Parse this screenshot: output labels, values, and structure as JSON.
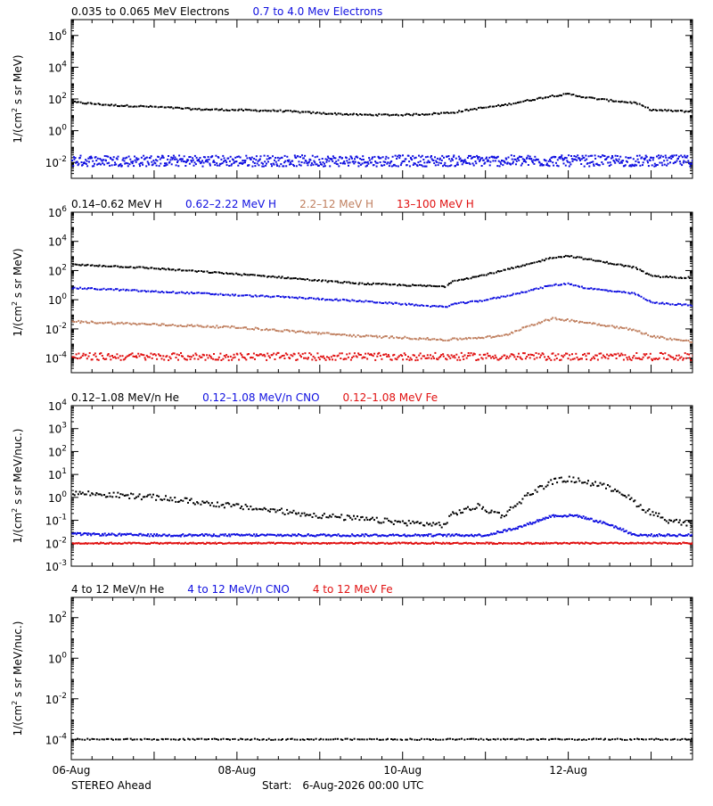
{
  "colors": {
    "black": "#000000",
    "blue": "#1010e0",
    "tan": "#c08060",
    "red": "#e01010"
  },
  "footer": {
    "spacecraft": "STEREO Ahead",
    "start_label": "Start:",
    "start_value": "6-Aug-2026 00:00 UTC"
  },
  "chart_data": [
    {
      "id": "electrons",
      "type": "scatter",
      "yscale": "log",
      "ylim_exp": [
        -3,
        7
      ],
      "xlim_days": [
        6,
        13.5
      ],
      "ylabel_pre": "1/(cm",
      "ylabel_sup": "2",
      "ylabel_post": " s sr MeV)",
      "yticks": [
        {
          "label": "10",
          "sup": "6",
          "exp": 6
        },
        {
          "label": "10",
          "sup": "4",
          "exp": 4
        },
        {
          "label": "10",
          "sup": "2",
          "exp": 2
        },
        {
          "label": "10",
          "sup": "0",
          "exp": 0
        },
        {
          "label": "10",
          "sup": "-2",
          "exp": -2
        }
      ],
      "legend": [
        {
          "text": "0.035 to 0.065 MeV Electrons",
          "color": "#000000"
        },
        {
          "text": "0.7 to 4.0 Mev Electrons",
          "color": "#1010e0"
        }
      ],
      "series": [
        {
          "legend_index": 0,
          "color": "#000000",
          "scatter": 0.05,
          "density": 320,
          "profile": [
            [
              6.0,
              1.8
            ],
            [
              6.5,
              1.6
            ],
            [
              7.0,
              1.5
            ],
            [
              7.5,
              1.35
            ],
            [
              8.0,
              1.3
            ],
            [
              8.5,
              1.25
            ],
            [
              9.0,
              1.1
            ],
            [
              9.5,
              1.0
            ],
            [
              10.0,
              1.0
            ],
            [
              10.3,
              1.05
            ],
            [
              10.6,
              1.15
            ],
            [
              10.9,
              1.4
            ],
            [
              11.2,
              1.6
            ],
            [
              11.5,
              1.9
            ],
            [
              11.8,
              2.2
            ],
            [
              12.0,
              2.3
            ],
            [
              12.2,
              2.1
            ],
            [
              12.5,
              1.9
            ],
            [
              12.8,
              1.75
            ],
            [
              13.0,
              1.3
            ],
            [
              13.5,
              1.2
            ]
          ]
        },
        {
          "legend_index": 1,
          "color": "#1010e0",
          "scatter": 0.35,
          "density": 900,
          "profile": [
            [
              6.0,
              -1.9
            ],
            [
              7.0,
              -1.9
            ],
            [
              8.0,
              -1.9
            ],
            [
              9.0,
              -1.9
            ],
            [
              10.0,
              -1.9
            ],
            [
              11.0,
              -1.9
            ],
            [
              12.0,
              -1.9
            ],
            [
              13.0,
              -1.9
            ],
            [
              13.5,
              -1.9
            ]
          ]
        }
      ]
    },
    {
      "id": "protons",
      "type": "scatter",
      "yscale": "log",
      "ylim_exp": [
        -5,
        6
      ],
      "xlim_days": [
        6,
        13.5
      ],
      "ylabel_pre": "1/(cm",
      "ylabel_sup": "2",
      "ylabel_post": " s sr MeV)",
      "yticks": [
        {
          "label": "10",
          "sup": "6",
          "exp": 6
        },
        {
          "label": "10",
          "sup": "4",
          "exp": 4
        },
        {
          "label": "10",
          "sup": "2",
          "exp": 2
        },
        {
          "label": "10",
          "sup": "0",
          "exp": 0
        },
        {
          "label": "10",
          "sup": "-2",
          "exp": -2
        },
        {
          "label": "10",
          "sup": "-4",
          "exp": -4
        }
      ],
      "legend": [
        {
          "text": "0.14–0.62 MeV H",
          "color": "#000000"
        },
        {
          "text": "0.62–2.22 MeV H",
          "color": "#1010e0"
        },
        {
          "text": "2.2–12 MeV H",
          "color": "#c08060"
        },
        {
          "text": "13–100 MeV H",
          "color": "#e01010"
        }
      ],
      "series": [
        {
          "legend_index": 0,
          "color": "#000000",
          "scatter": 0.05,
          "density": 320,
          "profile": [
            [
              6.0,
              2.4
            ],
            [
              6.5,
              2.3
            ],
            [
              7.0,
              2.15
            ],
            [
              7.5,
              1.95
            ],
            [
              8.0,
              1.75
            ],
            [
              8.5,
              1.55
            ],
            [
              9.0,
              1.3
            ],
            [
              9.5,
              1.1
            ],
            [
              10.0,
              1.0
            ],
            [
              10.5,
              0.9
            ],
            [
              10.6,
              1.3
            ],
            [
              10.9,
              1.6
            ],
            [
              11.2,
              2.0
            ],
            [
              11.5,
              2.4
            ],
            [
              11.8,
              2.9
            ],
            [
              12.0,
              3.0
            ],
            [
              12.2,
              2.8
            ],
            [
              12.5,
              2.5
            ],
            [
              12.8,
              2.2
            ],
            [
              13.0,
              1.6
            ],
            [
              13.5,
              1.5
            ]
          ]
        },
        {
          "legend_index": 1,
          "color": "#1010e0",
          "scatter": 0.05,
          "density": 320,
          "profile": [
            [
              6.0,
              0.8
            ],
            [
              6.5,
              0.7
            ],
            [
              7.0,
              0.55
            ],
            [
              7.5,
              0.45
            ],
            [
              8.0,
              0.3
            ],
            [
              8.5,
              0.2
            ],
            [
              9.0,
              0.05
            ],
            [
              9.5,
              -0.1
            ],
            [
              10.0,
              -0.3
            ],
            [
              10.5,
              -0.5
            ],
            [
              10.6,
              -0.3
            ],
            [
              10.9,
              -0.1
            ],
            [
              11.2,
              0.2
            ],
            [
              11.5,
              0.6
            ],
            [
              11.8,
              1.0
            ],
            [
              12.0,
              1.1
            ],
            [
              12.2,
              0.8
            ],
            [
              12.5,
              0.6
            ],
            [
              12.8,
              0.4
            ],
            [
              13.0,
              -0.2
            ],
            [
              13.5,
              -0.4
            ]
          ]
        },
        {
          "legend_index": 2,
          "color": "#c08060",
          "scatter": 0.07,
          "density": 340,
          "profile": [
            [
              6.0,
              -1.5
            ],
            [
              6.5,
              -1.6
            ],
            [
              7.0,
              -1.7
            ],
            [
              7.5,
              -1.8
            ],
            [
              8.0,
              -1.9
            ],
            [
              8.5,
              -2.1
            ],
            [
              9.0,
              -2.3
            ],
            [
              9.5,
              -2.5
            ],
            [
              10.0,
              -2.6
            ],
            [
              10.5,
              -2.75
            ],
            [
              10.9,
              -2.6
            ],
            [
              11.2,
              -2.5
            ],
            [
              11.5,
              -1.8
            ],
            [
              11.8,
              -1.3
            ],
            [
              12.0,
              -1.4
            ],
            [
              12.5,
              -1.8
            ],
            [
              12.8,
              -2.1
            ],
            [
              13.0,
              -2.5
            ],
            [
              13.5,
              -2.9
            ]
          ]
        },
        {
          "legend_index": 3,
          "color": "#e01010",
          "scatter": 0.25,
          "density": 500,
          "profile": [
            [
              6.0,
              -3.9
            ],
            [
              7.0,
              -3.9
            ],
            [
              8.0,
              -3.9
            ],
            [
              9.0,
              -3.9
            ],
            [
              10.0,
              -3.9
            ],
            [
              11.0,
              -3.9
            ],
            [
              12.0,
              -3.9
            ],
            [
              13.0,
              -3.9
            ],
            [
              13.5,
              -3.9
            ]
          ]
        }
      ]
    },
    {
      "id": "heavy-ions-low",
      "type": "scatter",
      "yscale": "log",
      "ylim_exp": [
        -3,
        4
      ],
      "xlim_days": [
        6,
        13.5
      ],
      "ylabel_pre": "1/(cm",
      "ylabel_sup": "2",
      "ylabel_post": " s sr MeV/nuc.)",
      "yticks": [
        {
          "label": "10",
          "sup": "4",
          "exp": 4
        },
        {
          "label": "10",
          "sup": "3",
          "exp": 3
        },
        {
          "label": "10",
          "sup": "2",
          "exp": 2
        },
        {
          "label": "10",
          "sup": "1",
          "exp": 1
        },
        {
          "label": "10",
          "sup": "0",
          "exp": 0
        },
        {
          "label": "10",
          "sup": "-1",
          "exp": -1
        },
        {
          "label": "10",
          "sup": "-2",
          "exp": -2
        },
        {
          "label": "10",
          "sup": "-3",
          "exp": -3
        }
      ],
      "legend": [
        {
          "text": "0.12–1.08 MeV/n He",
          "color": "#000000"
        },
        {
          "text": "0.12–1.08 MeV/n CNO",
          "color": "#1010e0"
        },
        {
          "text": "0.12–1.08 MeV Fe",
          "color": "#e01010"
        }
      ],
      "series": [
        {
          "legend_index": 0,
          "color": "#000000",
          "scatter": 0.12,
          "density": 360,
          "profile": [
            [
              6.0,
              0.2
            ],
            [
              6.5,
              0.1
            ],
            [
              7.0,
              0.0
            ],
            [
              7.5,
              -0.2
            ],
            [
              8.0,
              -0.4
            ],
            [
              8.5,
              -0.6
            ],
            [
              9.0,
              -0.8
            ],
            [
              9.5,
              -0.95
            ],
            [
              10.0,
              -1.1
            ],
            [
              10.5,
              -1.2
            ],
            [
              10.6,
              -0.7
            ],
            [
              10.9,
              -0.4
            ],
            [
              11.2,
              -0.8
            ],
            [
              11.5,
              0.1
            ],
            [
              11.8,
              0.7
            ],
            [
              12.0,
              0.8
            ],
            [
              12.3,
              0.6
            ],
            [
              12.6,
              0.3
            ],
            [
              12.9,
              -0.5
            ],
            [
              13.2,
              -1.0
            ],
            [
              13.5,
              -1.2
            ]
          ]
        },
        {
          "legend_index": 1,
          "color": "#1010e0",
          "scatter": 0.05,
          "density": 500,
          "profile": [
            [
              6.0,
              -1.6
            ],
            [
              7.0,
              -1.65
            ],
            [
              8.0,
              -1.65
            ],
            [
              9.0,
              -1.65
            ],
            [
              10.0,
              -1.65
            ],
            [
              11.0,
              -1.65
            ],
            [
              11.4,
              -1.3
            ],
            [
              11.8,
              -0.8
            ],
            [
              12.1,
              -0.8
            ],
            [
              12.5,
              -1.2
            ],
            [
              12.8,
              -1.65
            ],
            [
              13.5,
              -1.65
            ]
          ]
        },
        {
          "legend_index": 2,
          "color": "#e01010",
          "scatter": 0.03,
          "density": 500,
          "profile": [
            [
              6.0,
              -2.0
            ],
            [
              7.0,
              -2.0
            ],
            [
              8.0,
              -2.0
            ],
            [
              9.0,
              -2.0
            ],
            [
              10.0,
              -2.0
            ],
            [
              11.0,
              -2.0
            ],
            [
              12.0,
              -2.0
            ],
            [
              13.0,
              -2.0
            ],
            [
              13.5,
              -2.0
            ]
          ]
        }
      ]
    },
    {
      "id": "heavy-ions-high",
      "type": "scatter",
      "yscale": "log",
      "ylim_exp": [
        -5,
        3
      ],
      "xlim_days": [
        6,
        13.5
      ],
      "ylabel_pre": "1/(cm",
      "ylabel_sup": "2",
      "ylabel_post": " s sr MeV/nuc.)",
      "yticks": [
        {
          "label": "10",
          "sup": "2",
          "exp": 2
        },
        {
          "label": "10",
          "sup": "0",
          "exp": 0
        },
        {
          "label": "10",
          "sup": "-2",
          "exp": -2
        },
        {
          "label": "10",
          "sup": "-4",
          "exp": -4
        }
      ],
      "xticks": [
        {
          "label": "06-Aug",
          "day": 6
        },
        {
          "label": "08-Aug",
          "day": 8
        },
        {
          "label": "10-Aug",
          "day": 10
        },
        {
          "label": "12-Aug",
          "day": 12
        }
      ],
      "legend": [
        {
          "text": "4 to 12 MeV/n He",
          "color": "#000000"
        },
        {
          "text": "4 to 12 MeV/n CNO",
          "color": "#1010e0"
        },
        {
          "text": "4 to 12 MeV Fe",
          "color": "#e01010"
        }
      ],
      "series": [
        {
          "legend_index": 0,
          "color": "#000000",
          "scatter": 0.03,
          "density": 260,
          "profile": [
            [
              6.0,
              -4.0
            ],
            [
              7.0,
              -4.0
            ],
            [
              8.0,
              -4.0
            ],
            [
              9.0,
              -4.0
            ],
            [
              10.0,
              -4.0
            ],
            [
              11.0,
              -4.0
            ],
            [
              12.0,
              -4.0
            ],
            [
              13.0,
              -4.0
            ],
            [
              13.5,
              -4.0
            ]
          ]
        }
      ]
    }
  ]
}
